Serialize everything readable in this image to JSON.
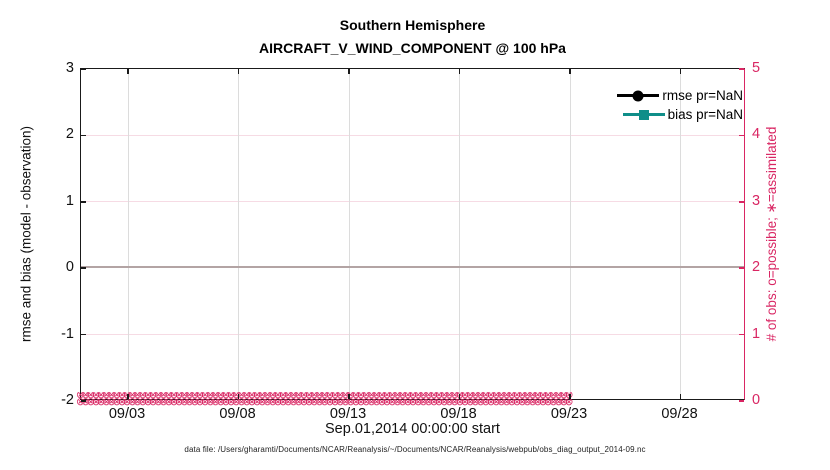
{
  "title": {
    "line1": "Southern Hemisphere",
    "line2": "AIRCRAFT_V_WIND_COMPONENT @ 100 hPa"
  },
  "axes": {
    "left": {
      "label": "rmse and bias (model - observation)",
      "ticks": [
        "3",
        "2",
        "1",
        "0",
        "-1",
        "-2"
      ],
      "color": "#111111"
    },
    "right": {
      "label": "# of obs: o=possible; ∗=assimilated",
      "ticks": [
        "5",
        "4",
        "3",
        "2",
        "1",
        "0"
      ],
      "color": "#d92663"
    },
    "x": {
      "ticks": [
        "09/03",
        "09/08",
        "09/13",
        "09/18",
        "09/23",
        "09/28"
      ],
      "label": "Sep.01,2014 00:00:00 start"
    }
  },
  "legend": [
    {
      "label": "rmse pr=NaN",
      "color": "#000000",
      "marker": "circle"
    },
    {
      "label": "bias pr=NaN",
      "color": "#0f8e89",
      "marker": "square"
    }
  ],
  "obs_band": {
    "symbol": "⊗",
    "rows": 2,
    "per_row": 95,
    "color": "#d92663"
  },
  "caption": "data file: /Users/gharamti/Documents/NCAR/Reanalysis/~/Documents/NCAR/Reanalysis/webpub/obs_diag_output_2014-09.nc",
  "chart_data": {
    "type": "line",
    "title": "Southern Hemisphere",
    "subtitle": "AIRCRAFT_V_WIND_COMPONENT @ 100 hPa",
    "xlabel": "Sep.01,2014 00:00:00 start",
    "ylabel_left": "rmse and bias (model - observation)",
    "ylabel_right": "# of obs: o=possible; ∗=assimilated",
    "ylim_left": [
      -2,
      3
    ],
    "ylim_right": [
      0,
      5
    ],
    "x_ticks": [
      "09/03",
      "09/08",
      "09/13",
      "09/18",
      "09/23",
      "09/28"
    ],
    "x_range_days": [
      "2014-09-01 00:00:00",
      "2014-10-01 00:00:00"
    ],
    "grid": true,
    "legend_position": "top-right-inside",
    "zero_reference_line_left_axis": 0,
    "series": [
      {
        "name": "rmse pr=NaN",
        "axis": "left",
        "values": "all NaN — no line drawn"
      },
      {
        "name": "bias pr=NaN",
        "axis": "left",
        "values": "all NaN — no line drawn"
      },
      {
        "name": "# of obs possible (o)",
        "axis": "right",
        "constant_value": 0,
        "note": "dense markers at 0 across entire time range"
      },
      {
        "name": "# of obs assimilated (∗)",
        "axis": "right",
        "constant_value": 0,
        "note": "dense markers at 0 across entire time range"
      }
    ]
  }
}
